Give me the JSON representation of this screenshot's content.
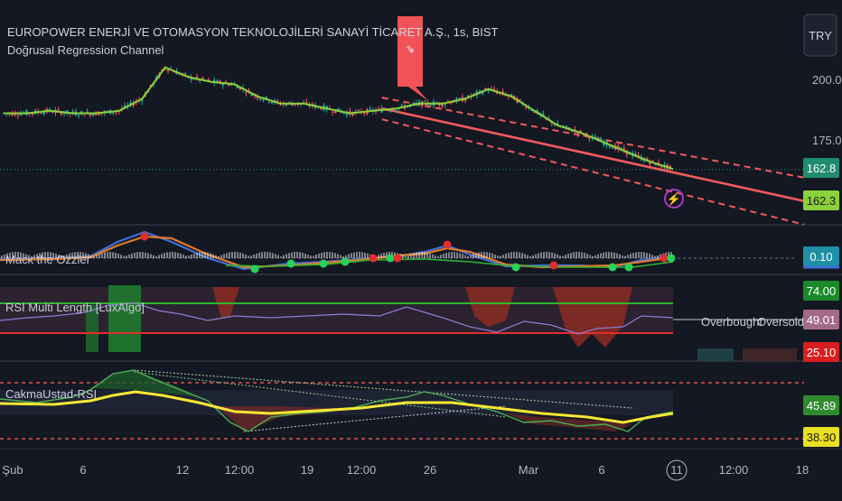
{
  "header": {
    "title": "EUROPOWER ENERJİ VE OTOMASYON TEKNOLOJİLERİ SANAYİ TİCARET A.Ş., 1s, BIST",
    "currency": "TRY"
  },
  "panes": {
    "price": {
      "indicator": "Doğrusal Regression Channel"
    },
    "mack": {
      "label": "Mack the Ozzier"
    },
    "rsi": {
      "label": "RSI Multi Length [LuxAlgo]",
      "overbought": "Overbought",
      "oversold": "Oversold"
    },
    "cakma": {
      "label": "CakmaUstad-RSI"
    }
  },
  "chart_data": [
    {
      "type": "line",
      "title": "EUROPOWER ENERJİ VE OTOMASYON TEKNOLOJİLERİ SANAYİ TİCARET A.Ş., 1s, BIST",
      "y_ticks": [
        "200.0",
        "175.0"
      ],
      "badges": [
        {
          "text": "162.8",
          "value": 162.8,
          "bg": "#1e8c6e",
          "fg": "#ffffff"
        },
        {
          "text": "162.3",
          "value": 162.3,
          "bg": "#8bd13a",
          "fg": "#1a1a1a"
        }
      ],
      "x_ticks": [
        "Şub",
        "6",
        "12",
        "12:00",
        "19",
        "12:00",
        "26",
        "Mar",
        "6",
        "11",
        "12:00",
        "18"
      ],
      "x": [
        0,
        1,
        2,
        3,
        4,
        5,
        6,
        7,
        8,
        9,
        10,
        11,
        12,
        13,
        14,
        15,
        16,
        17,
        18,
        19,
        20,
        21,
        22,
        23,
        24,
        25,
        26,
        27,
        28,
        29
      ],
      "values": [
        186,
        186,
        187,
        186,
        186,
        187,
        192,
        205,
        201,
        199,
        198,
        193,
        190,
        190,
        188,
        186,
        187,
        188,
        190,
        190,
        192,
        196,
        193,
        187,
        181,
        178,
        174,
        170,
        166,
        163
      ]
    },
    {
      "type": "line",
      "title": "Mack the Ozzier",
      "badges": [
        {
          "text": "0.10",
          "value": 0.1,
          "bg": "#1f8fa6",
          "fg": "#ffffff"
        }
      ]
    },
    {
      "type": "area",
      "title": "RSI Multi Length [LuxAlgo]",
      "badges": [
        {
          "text": "74.00",
          "value": 74.0,
          "bg": "#1b8a2a",
          "fg": "#ffffff"
        },
        {
          "text": "49.01",
          "value": 49.01,
          "bg": "#a36a87",
          "fg": "#ffffff"
        },
        {
          "text": "25.10",
          "value": 25.1,
          "bg": "#d81e1e",
          "fg": "#ffffff"
        }
      ]
    },
    {
      "type": "line",
      "title": "CakmaUstad-RSI",
      "badges": [
        {
          "text": "45.89",
          "value": 45.89,
          "bg": "#2f8a2f",
          "fg": "#ffffff"
        },
        {
          "text": "38.30",
          "value": 38.3,
          "bg": "#e8e022",
          "fg": "#1a1a1a"
        }
      ]
    }
  ]
}
